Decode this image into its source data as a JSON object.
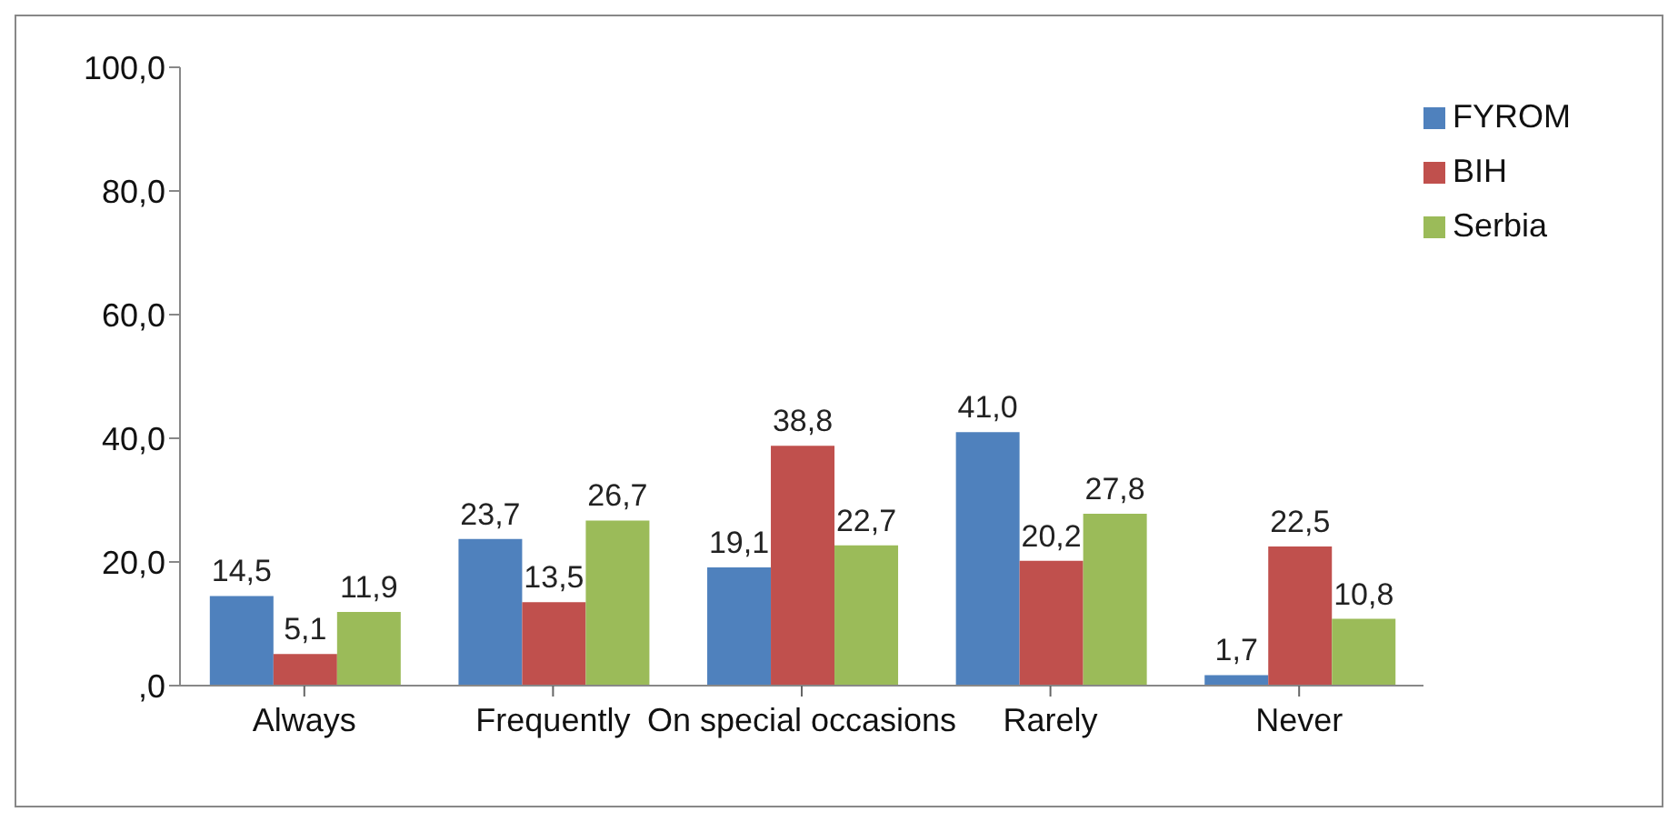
{
  "chart_data": {
    "type": "bar",
    "categories": [
      "Always",
      "Frequently",
      "On special occasions",
      "Rarely",
      "Never"
    ],
    "series": [
      {
        "name": "FYROM",
        "color": "#4f81bd",
        "values": [
          14.5,
          23.7,
          19.1,
          41.0,
          1.7
        ],
        "value_labels": [
          "14,5",
          "23,7",
          "19,1",
          "41,0",
          "1,7"
        ]
      },
      {
        "name": "BIH",
        "color": "#c0504d",
        "values": [
          5.1,
          13.5,
          38.8,
          20.2,
          22.5
        ],
        "value_labels": [
          "5,1",
          "13,5",
          "38,8",
          "20,2",
          "22,5"
        ]
      },
      {
        "name": "Serbia",
        "color": "#9bbb59",
        "values": [
          11.9,
          26.7,
          22.7,
          27.8,
          10.8
        ],
        "value_labels": [
          "11,9",
          "26,7",
          "22,7",
          "27,8",
          "10,8"
        ]
      }
    ],
    "ylim": [
      0,
      100
    ],
    "yticks": [
      {
        "value": 0,
        "label": ",0"
      },
      {
        "value": 20,
        "label": "20,0"
      },
      {
        "value": 40,
        "label": "40,0"
      },
      {
        "value": 60,
        "label": "60,0"
      },
      {
        "value": 80,
        "label": "80,0"
      },
      {
        "value": 100,
        "label": "100,0"
      }
    ],
    "grid": false,
    "legend": "top right"
  }
}
